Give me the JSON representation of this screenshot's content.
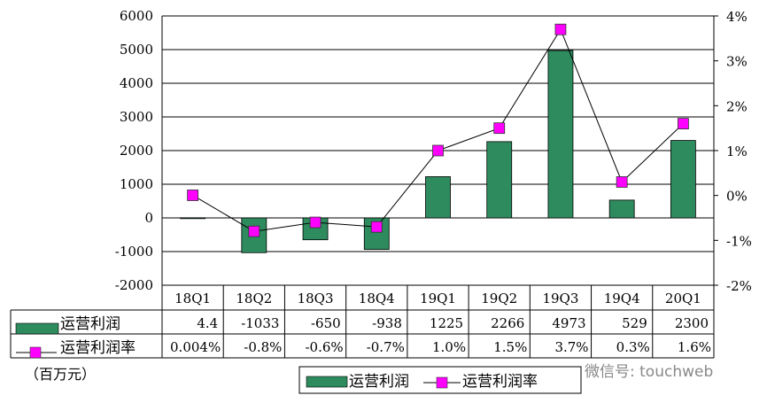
{
  "chart_data": {
    "type": "bar+line",
    "categories": [
      "18Q1",
      "18Q2",
      "18Q3",
      "18Q4",
      "19Q1",
      "19Q2",
      "19Q3",
      "19Q4",
      "20Q1"
    ],
    "series": [
      {
        "name": "运营利润",
        "type": "bar",
        "axis": "left",
        "values": [
          4.4,
          -1033,
          -650,
          -938,
          1225,
          2266,
          4973,
          529,
          2300
        ],
        "labels": [
          "4.4",
          "-1033",
          "-650",
          "-938",
          "1225",
          "2266",
          "4973",
          "529",
          "2300"
        ]
      },
      {
        "name": "运营利润率",
        "type": "line",
        "axis": "right",
        "values": [
          0.004,
          -0.8,
          -0.6,
          -0.7,
          1.0,
          1.5,
          3.7,
          0.3,
          1.6
        ],
        "labels": [
          "0.004%",
          "-0.8%",
          "-0.6%",
          "-0.7%",
          "1.0%",
          "1.5%",
          "3.7%",
          "0.3%",
          "1.6%"
        ]
      }
    ],
    "y_left": {
      "range": [
        -2000,
        6000
      ],
      "ticks": [
        "6000",
        "5000",
        "4000",
        "3000",
        "2000",
        "1000",
        "0",
        "-1000",
        "-2000"
      ]
    },
    "y_right": {
      "range": [
        -2,
        4
      ],
      "ticks": [
        "4%",
        "3%",
        "2%",
        "1%",
        "0%",
        "-1%",
        "-2%"
      ]
    },
    "unit": "（百万元）",
    "grid": true,
    "legend_placement": "bottom",
    "data_table": true,
    "colors": {
      "bar": "#2e8b5e",
      "marker": "#ff00ff",
      "line": "#000000"
    }
  },
  "watermark": "微信号: touchweb"
}
